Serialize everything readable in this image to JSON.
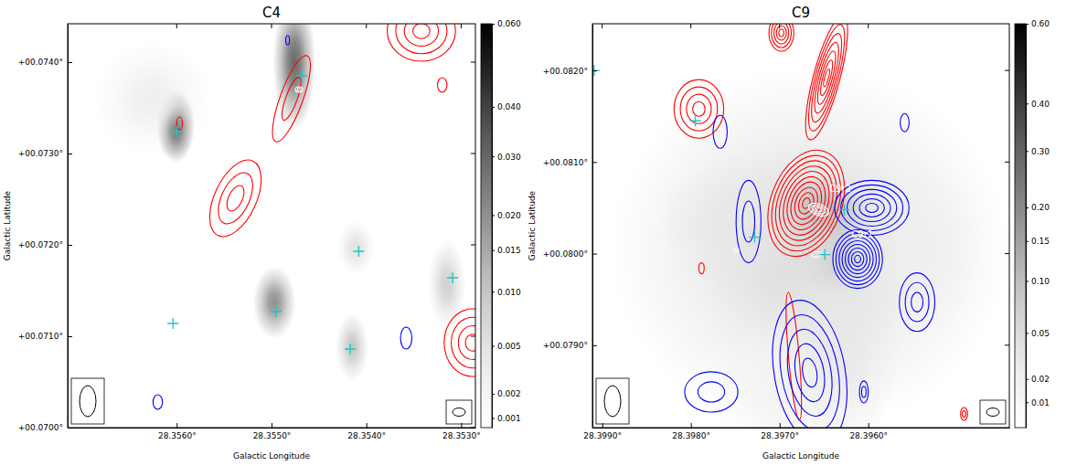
{
  "chart_data": [
    {
      "type": "image",
      "title": "C4",
      "x_label": "Galactic Longitude",
      "y_label": "Galactic Latitude",
      "xlim": [
        28.35715,
        28.35285
      ],
      "xticks": [
        {
          "value": 28.356,
          "label": "28.3560°"
        },
        {
          "value": 28.355,
          "label": "28.3550°"
        },
        {
          "value": 28.354,
          "label": "28.3540°"
        },
        {
          "value": 28.353,
          "label": "28.3530°"
        }
      ],
      "ylim": [
        0.07,
        0.07442
      ],
      "yticks": [
        {
          "value": 0.07,
          "label": "+00.0700°"
        },
        {
          "value": 0.071,
          "label": "+00.0710°"
        },
        {
          "value": 0.072,
          "label": "+00.0720°"
        },
        {
          "value": 0.073,
          "label": "+00.0730°"
        },
        {
          "value": 0.074,
          "label": "+00.0740°"
        }
      ],
      "colorbar_lim": [
        0.0007,
        0.06
      ],
      "colorbar_ticks": [
        0.001,
        0.002,
        0.005,
        {
          "value": 0.01,
          "label": "0.010"
        },
        0.015,
        {
          "value": 0.02,
          "label": "0.020"
        },
        {
          "value": 0.03,
          "label": "0.030"
        },
        {
          "value": 0.04,
          "label": "0.040"
        },
        {
          "value": 0.06,
          "label": "0.060"
        }
      ],
      "emission": {
        "l": [
          28.35601,
          28.35476,
          28.35497,
          28.35415,
          28.35411,
          28.35315,
          28.35625
        ],
        "b": [
          0.0733,
          0.074,
          0.07137,
          0.07088,
          0.07197,
          0.07157,
          0.0736
        ],
        "peak": [
          0.04,
          0.03,
          0.02,
          0.01,
          0.005,
          0.008,
          0.003
        ],
        "sigma_l": [
          8e-05,
          9e-05,
          9e-05,
          7e-05,
          8e-05,
          8e-05,
          0.00025
        ],
        "sigma_b": [
          0.00016,
          0.0003,
          0.00016,
          0.00015,
          0.00012,
          0.0002,
          0.00025
        ]
      },
      "contours": [
        {
          "color": "red",
          "components": {
            "l": [
              28.35597,
              28.35538,
              28.35479,
              28.35342,
              28.3532,
              28.35288
            ],
            "b": [
              0.07333,
              0.07251,
              0.0736,
              0.07434,
              0.07375,
              0.07093
            ],
            "radius_l": [
              3e-05,
              0.00022,
              0.00012,
              0.00036,
              5e-05,
              0.0003
            ],
            "radius_b": [
              7e-05,
              0.00045,
              0.0005,
              0.00033,
              8e-05,
              0.00037
            ],
            "pa": [
              0,
              -25,
              -20,
              0,
              0,
              0
            ],
            "levels": [
              1,
              3,
              2,
              4,
              1,
              4
            ]
          }
        },
        {
          "color": "blue",
          "components": {
            "l": [
              28.35358,
              28.3562,
              28.35483
            ],
            "b": [
              0.07098,
              0.07028,
              0.07424
            ],
            "radius_l": [
              6e-05,
              5e-05,
              2e-05
            ],
            "radius_b": [
              0.00012,
              8e-05,
              5e-05
            ],
            "pa": [
              0,
              0,
              0
            ],
            "levels": [
              1,
              1,
              1
            ]
          }
        },
        {
          "color": "white",
          "components": {
            "l": [
              28.35471
            ],
            "b": [
              0.0737
            ],
            "radius_l": [
              4e-05
            ],
            "radius_b": [
              3e-05
            ],
            "pa": [
              0
            ],
            "levels": [
              2
            ]
          }
        }
      ],
      "sources": {
        "color": "#1fc4c8",
        "marker": "plus",
        "l": [
          28.356,
          28.35468,
          28.35408,
          28.35495,
          28.35417,
          28.35309,
          28.35604
        ],
        "b": [
          0.07324,
          0.07385,
          0.07193,
          0.07127,
          0.07086,
          0.07164,
          0.07114
        ]
      }
    },
    {
      "type": "image",
      "title": "C9",
      "x_label": "Galactic Longitude",
      "y_label": "Galactic Latitude",
      "xlim": [
        28.39911,
        28.39441
      ],
      "xticks": [
        {
          "value": 28.399,
          "label": "28.3990°"
        },
        {
          "value": 28.398,
          "label": "28.3980°"
        },
        {
          "value": 28.397,
          "label": "28.3970°"
        },
        {
          "value": 28.396,
          "label": "28.3960°"
        }
      ],
      "ylim": [
        0.0781,
        0.08251
      ],
      "yticks": [
        {
          "value": 0.079,
          "label": "+00.0790°"
        },
        {
          "value": 0.08,
          "label": "+00.0800°"
        },
        {
          "value": 0.081,
          "label": "+00.0810°"
        },
        {
          "value": 0.082,
          "label": "+00.0820°"
        }
      ],
      "colorbar_lim": [
        0.003,
        0.6
      ],
      "colorbar_ticks": [
        0.01,
        0.02,
        0.05,
        {
          "value": 0.1,
          "label": "0.10"
        },
        0.15,
        {
          "value": 0.2,
          "label": "0.20"
        },
        {
          "value": 0.3,
          "label": "0.30"
        },
        {
          "value": 0.4,
          "label": "0.40"
        },
        {
          "value": 0.6,
          "label": "0.60"
        }
      ],
      "emission": {
        "l": [
          28.39656,
          28.39638,
          28.39666,
          28.39638,
          28.39749,
          28.39545,
          28.39731,
          28.397
        ],
        "b": [
          0.0804,
          0.07991,
          0.08006,
          0.07898,
          0.08035,
          0.08006,
          0.08018,
          0.0785
        ],
        "peak": [
          0.6,
          0.4,
          0.05,
          0.03,
          0.03,
          0.02,
          0.04,
          0.015
        ],
        "sigma_l": [
          0.00022,
          0.00015,
          0.0009,
          0.0003,
          0.00035,
          0.0003,
          8e-05,
          0.0003
        ],
        "sigma_b": [
          0.00018,
          0.00015,
          0.0008,
          0.0005,
          0.0003,
          0.0004,
          8e-05,
          0.0003
        ]
      },
      "contours": [
        {
          "color": "red",
          "components": {
            "l": [
              28.3967,
              28.39647,
              28.39698,
              28.39791,
              28.39684,
              28.39492,
              28.39788
            ],
            "b": [
              0.08055,
              0.08192,
              0.08241,
              0.08158,
              0.07888,
              0.07825,
              0.07984
            ],
            "radius_l": [
              0.0004,
              0.00015,
              0.00014,
              0.00028,
              6e-05,
              4e-05,
              3e-05
            ],
            "radius_b": [
              0.0006,
              0.0007,
              0.0002,
              0.00032,
              0.0007,
              7e-05,
              6e-05
            ],
            "pa": [
              -20,
              -15,
              0,
              0,
              5,
              0,
              0
            ],
            "levels": [
              10,
              7,
              5,
              4,
              1,
              2,
              1
            ]
          }
        },
        {
          "color": "blue",
          "components": {
            "l": [
              28.39596,
              28.39612,
              28.39666,
              28.39735,
              28.39767,
              28.39545,
              28.39777,
              28.39605,
              28.39559
            ],
            "b": [
              0.0805,
              0.07994,
              0.0787,
              0.08035,
              0.08133,
              0.07947,
              0.07849,
              0.07849,
              0.08143
            ],
            "radius_l": [
              0.00042,
              0.00028,
              0.0004,
              0.00014,
              8e-05,
              0.0002,
              0.0003,
              5e-05,
              5e-05
            ],
            "radius_b": [
              0.0003,
              0.00032,
              0.0008,
              0.00045,
              0.00018,
              0.00032,
              0.00022,
              0.00012,
              0.0001
            ],
            "pa": [
              0,
              0,
              10,
              0,
              0,
              0,
              0,
              0,
              0
            ],
            "levels": [
              6,
              8,
              5,
              2,
              1,
              3,
              2,
              2,
              1
            ]
          }
        },
        {
          "color": "white",
          "components": {
            "l": [
              28.39656,
              28.39659,
              28.39749
            ],
            "b": [
              0.08048,
              0.07999,
              0.08004
            ],
            "radius_l": [
              0.00012,
              5e-05,
              3e-05
            ],
            "radius_b": [
              6e-05,
              3e-05,
              2e-05
            ],
            "pa": [
              -20,
              0,
              0
            ],
            "levels": [
              3,
              1,
              1
            ]
          }
        }
      ],
      "sources": {
        "color": "#1fc4c8",
        "marker": "plus",
        "l": [
          28.39909,
          28.39795,
          28.39728,
          28.39649,
          28.39627
        ],
        "b": [
          0.082,
          0.08145,
          0.08018,
          0.07999,
          0.08048
        ]
      },
      "annotations": [
        {
          "text": "C9r2",
          "l": 28.39644,
          "b": 0.08067
        },
        {
          "text": "C9r1",
          "l": 28.39619,
          "b": 0.08018
        }
      ]
    }
  ]
}
